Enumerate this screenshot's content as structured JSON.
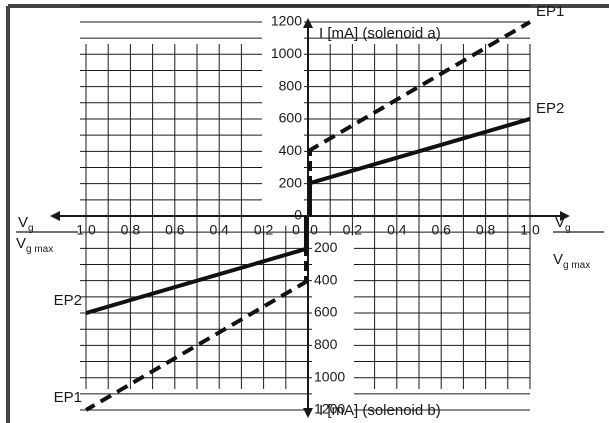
{
  "chart_data": {
    "type": "line",
    "top_axis_label": "I [mA]  (solenoid a)",
    "bottom_axis_label": "I [mA]  (solenoid b)",
    "x_label_main": "V",
    "x_label_sub_num": "g",
    "x_label_sub_den": "g max",
    "x_ticks_left": [
      "1.0",
      "0.8",
      "0.6",
      "0.4",
      "0.2",
      "0"
    ],
    "x_ticks_right": [
      "0",
      "0.2",
      "0.4",
      "0.6",
      "0.8",
      "1.0"
    ],
    "y_ticks_top": [
      "1200",
      "1000",
      "800",
      "600",
      "400",
      "200",
      "0"
    ],
    "y_ticks_bottom": [
      "200",
      "400",
      "600",
      "800",
      "1000",
      "1200"
    ],
    "xlim": [
      -1.0,
      1.0
    ],
    "ylim": [
      -1350,
      1350
    ],
    "series": [
      {
        "name": "EP1",
        "style": "dashed",
        "label_positions": [
          "right-top",
          "left-bottom"
        ],
        "quadrant_a": [
          [
            0,
            400
          ],
          [
            1.0,
            1200
          ]
        ],
        "quadrant_b": [
          [
            0,
            -400
          ],
          [
            -1.0,
            -1200
          ]
        ]
      },
      {
        "name": "EP2",
        "style": "solid",
        "label_positions": [
          "right-top",
          "left-bottom"
        ],
        "quadrant_a": [
          [
            0,
            200
          ],
          [
            1.0,
            600
          ]
        ],
        "quadrant_b": [
          [
            0,
            -200
          ],
          [
            -1.0,
            -600
          ]
        ]
      }
    ]
  }
}
